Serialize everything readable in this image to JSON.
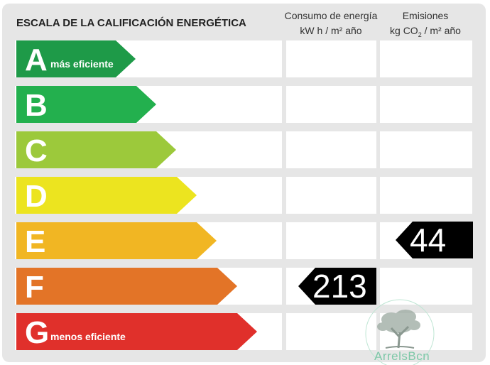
{
  "header": {
    "title": "ESCALA DE LA CALIFICACIÓN ENERGÉTICA",
    "consumo_line1": "Consumo de energía",
    "consumo_line2": "kW h  / m² año",
    "emisiones_line1": "Emisiones",
    "emisiones_unit_a": "kg CO",
    "emisiones_unit_sub": "2",
    "emisiones_unit_b": "  / m² año"
  },
  "rating_scale": [
    {
      "letter": "A",
      "label": "más eficiente",
      "color": "#1e9a48"
    },
    {
      "letter": "B",
      "label": "",
      "color": "#23b04e"
    },
    {
      "letter": "C",
      "label": "",
      "color": "#9cc93b"
    },
    {
      "letter": "D",
      "label": "",
      "color": "#ece41f"
    },
    {
      "letter": "E",
      "label": "",
      "color": "#f1b623"
    },
    {
      "letter": "F",
      "label": "",
      "color": "#e37427"
    },
    {
      "letter": "G",
      "label": "menos eficiente",
      "color": "#e0302b"
    }
  ],
  "result": {
    "consumo_value": "213",
    "consumo_rating": "F",
    "emisiones_value": "44",
    "emisiones_rating": "E"
  },
  "watermark": {
    "text": "ArrelsBcn",
    "color": "#7ec8a8",
    "icon": "tree-icon"
  }
}
